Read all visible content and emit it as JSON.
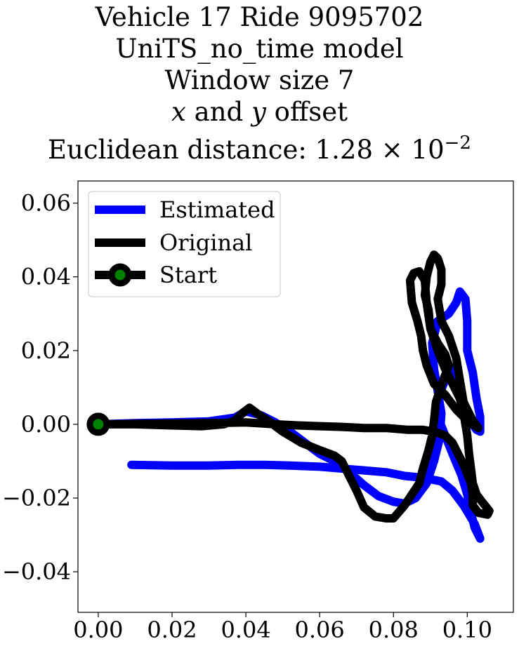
{
  "title": {
    "line1": "Vehicle 17 Ride 9095702",
    "line2": "UniTS_no_time model",
    "line3": "Window size 7",
    "line4_x": "x",
    "line4_and": " and ",
    "line4_y": "y",
    "line4_rest": " offset",
    "line5": "Euclidean distance: 1.28 × 10",
    "line5_exp": "−2"
  },
  "chart_data": {
    "type": "line",
    "xlim": [
      -0.0055,
      0.1125
    ],
    "ylim": [
      -0.051,
      0.066
    ],
    "x_ticks": [
      0.0,
      0.02,
      0.04,
      0.06,
      0.08,
      0.1
    ],
    "x_tick_labels": [
      "0.00",
      "0.02",
      "0.04",
      "0.06",
      "0.08",
      "0.10"
    ],
    "y_ticks": [
      -0.04,
      -0.02,
      0.0,
      0.02,
      0.04,
      0.06
    ],
    "y_tick_labels": [
      "−0.04",
      "−0.02",
      "0.00",
      "0.02",
      "0.04",
      "0.06"
    ],
    "grid": false,
    "legend_position": "top-left",
    "series": [
      {
        "name": "Estimated",
        "color": "#0000ff",
        "points": [
          [
            0.0,
            0.0
          ],
          [
            0.01,
            0.0003
          ],
          [
            0.02,
            0.0005
          ],
          [
            0.03,
            0.0008
          ],
          [
            0.037,
            0.0018
          ],
          [
            0.04,
            0.0035
          ],
          [
            0.044,
            0.0025
          ],
          [
            0.048,
            0.0005
          ],
          [
            0.052,
            -0.002
          ],
          [
            0.056,
            -0.005
          ],
          [
            0.06,
            -0.008
          ],
          [
            0.064,
            -0.01
          ],
          [
            0.068,
            -0.013
          ],
          [
            0.072,
            -0.0165
          ],
          [
            0.076,
            -0.0195
          ],
          [
            0.08,
            -0.021
          ],
          [
            0.083,
            -0.0215
          ],
          [
            0.086,
            -0.02
          ],
          [
            0.089,
            -0.016
          ],
          [
            0.091,
            -0.01
          ],
          [
            0.0925,
            -0.004
          ],
          [
            0.093,
            0.003
          ],
          [
            0.092,
            0.009
          ],
          [
            0.091,
            0.015
          ],
          [
            0.0905,
            0.022
          ],
          [
            0.092,
            0.028
          ],
          [
            0.095,
            0.03
          ],
          [
            0.097,
            0.033
          ],
          [
            0.098,
            0.036
          ],
          [
            0.0995,
            0.034
          ],
          [
            0.1,
            0.028
          ],
          [
            0.1,
            0.02
          ],
          [
            0.1015,
            0.014
          ],
          [
            0.1025,
            0.007
          ],
          [
            0.1035,
            0.002
          ],
          [
            0.1035,
            -0.002
          ],
          [
            0.1025,
            -0.0015
          ],
          [
            0.1,
            0.002
          ],
          [
            0.098,
            0.007
          ],
          [
            0.096,
            0.012
          ],
          [
            0.095,
            0.016
          ],
          [
            0.094,
            0.012
          ],
          [
            0.092,
            0.007
          ],
          [
            0.092,
            0.002
          ],
          [
            0.094,
            -0.003
          ],
          [
            0.096,
            -0.008
          ],
          [
            0.0985,
            -0.014
          ],
          [
            0.1,
            -0.019
          ],
          [
            0.101,
            -0.024
          ],
          [
            0.102,
            -0.028
          ],
          [
            0.1035,
            -0.031
          ],
          [
            0.102,
            -0.027
          ],
          [
            0.099,
            -0.022
          ],
          [
            0.096,
            -0.018
          ],
          [
            0.093,
            -0.0155
          ],
          [
            0.088,
            -0.0145
          ],
          [
            0.083,
            -0.014
          ],
          [
            0.078,
            -0.013
          ],
          [
            0.072,
            -0.0125
          ],
          [
            0.066,
            -0.012
          ],
          [
            0.06,
            -0.0115
          ],
          [
            0.052,
            -0.0112
          ],
          [
            0.045,
            -0.011
          ],
          [
            0.038,
            -0.011
          ],
          [
            0.03,
            -0.0112
          ],
          [
            0.02,
            -0.0112
          ],
          [
            0.009,
            -0.011
          ]
        ]
      },
      {
        "name": "Original",
        "color": "#000000",
        "points": [
          [
            0.0,
            0.0
          ],
          [
            0.01,
            0.0
          ],
          [
            0.02,
            -0.0003
          ],
          [
            0.028,
            -0.0005
          ],
          [
            0.034,
            0.0
          ],
          [
            0.037,
            0.001
          ],
          [
            0.039,
            0.003
          ],
          [
            0.041,
            0.0045
          ],
          [
            0.043,
            0.003
          ],
          [
            0.046,
            0.001
          ],
          [
            0.05,
            -0.002
          ],
          [
            0.055,
            -0.005
          ],
          [
            0.06,
            -0.007
          ],
          [
            0.064,
            -0.0085
          ],
          [
            0.066,
            -0.01
          ],
          [
            0.068,
            -0.014
          ],
          [
            0.07,
            -0.018
          ],
          [
            0.072,
            -0.0225
          ],
          [
            0.075,
            -0.025
          ],
          [
            0.078,
            -0.0255
          ],
          [
            0.08,
            -0.0255
          ],
          [
            0.083,
            -0.022
          ],
          [
            0.085,
            -0.019
          ],
          [
            0.087,
            -0.016
          ],
          [
            0.088,
            -0.012
          ],
          [
            0.0895,
            -0.007
          ],
          [
            0.0905,
            -0.003
          ],
          [
            0.091,
            0.001
          ],
          [
            0.0915,
            0.006
          ],
          [
            0.0935,
            0.012
          ],
          [
            0.095,
            0.016
          ],
          [
            0.094,
            0.019
          ],
          [
            0.092,
            0.022
          ],
          [
            0.09,
            0.026
          ],
          [
            0.0895,
            0.031
          ],
          [
            0.0885,
            0.035
          ],
          [
            0.089,
            0.04
          ],
          [
            0.09,
            0.044
          ],
          [
            0.091,
            0.046
          ],
          [
            0.092,
            0.045
          ],
          [
            0.093,
            0.042
          ],
          [
            0.093,
            0.038
          ],
          [
            0.092,
            0.034
          ],
          [
            0.093,
            0.028
          ],
          [
            0.095,
            0.024
          ],
          [
            0.097,
            0.018
          ],
          [
            0.098,
            0.012
          ],
          [
            0.099,
            0.006
          ],
          [
            0.1015,
            0.001
          ],
          [
            0.103,
            -0.001
          ],
          [
            0.1,
            0.001
          ],
          [
            0.097,
            0.004
          ],
          [
            0.094,
            0.008
          ],
          [
            0.091,
            0.011
          ],
          [
            0.089,
            0.016
          ],
          [
            0.088,
            0.02
          ],
          [
            0.0875,
            0.024
          ],
          [
            0.0865,
            0.028
          ],
          [
            0.085,
            0.033
          ],
          [
            0.0845,
            0.039
          ],
          [
            0.0855,
            0.041
          ],
          [
            0.087,
            0.0415
          ],
          [
            0.0885,
            0.039
          ],
          [
            0.089,
            0.033
          ],
          [
            0.09,
            0.026
          ],
          [
            0.092,
            0.02
          ],
          [
            0.094,
            0.015
          ],
          [
            0.096,
            0.011
          ],
          [
            0.098,
            0.007
          ],
          [
            0.099,
            0.003
          ],
          [
            0.1,
            -0.003
          ],
          [
            0.1005,
            -0.008
          ],
          [
            0.101,
            -0.012
          ],
          [
            0.1015,
            -0.016
          ],
          [
            0.1025,
            -0.019
          ],
          [
            0.104,
            -0.021
          ],
          [
            0.106,
            -0.0235
          ],
          [
            0.1055,
            -0.0245
          ],
          [
            0.103,
            -0.024
          ],
          [
            0.1015,
            -0.022
          ],
          [
            0.1015,
            -0.019
          ],
          [
            0.101,
            -0.016
          ],
          [
            0.099,
            -0.011
          ],
          [
            0.096,
            -0.005
          ],
          [
            0.094,
            -0.003
          ],
          [
            0.091,
            -0.002
          ],
          [
            0.088,
            -0.0015
          ],
          [
            0.084,
            -0.0015
          ],
          [
            0.078,
            -0.001
          ],
          [
            0.072,
            -0.001
          ],
          [
            0.066,
            -0.0007
          ],
          [
            0.06,
            -0.0005
          ],
          [
            0.054,
            -0.0003
          ],
          [
            0.048,
            0.0
          ],
          [
            0.04,
            0.0005
          ],
          [
            0.03,
            0.0003
          ],
          [
            0.02,
            0.0002
          ],
          [
            0.01,
            0.0001
          ],
          [
            0.0,
            0.0
          ]
        ]
      }
    ],
    "start_marker": {
      "name": "Start",
      "x": 0.0,
      "y": 0.0,
      "face_color": "#008000",
      "edge_color": "#000000"
    }
  }
}
